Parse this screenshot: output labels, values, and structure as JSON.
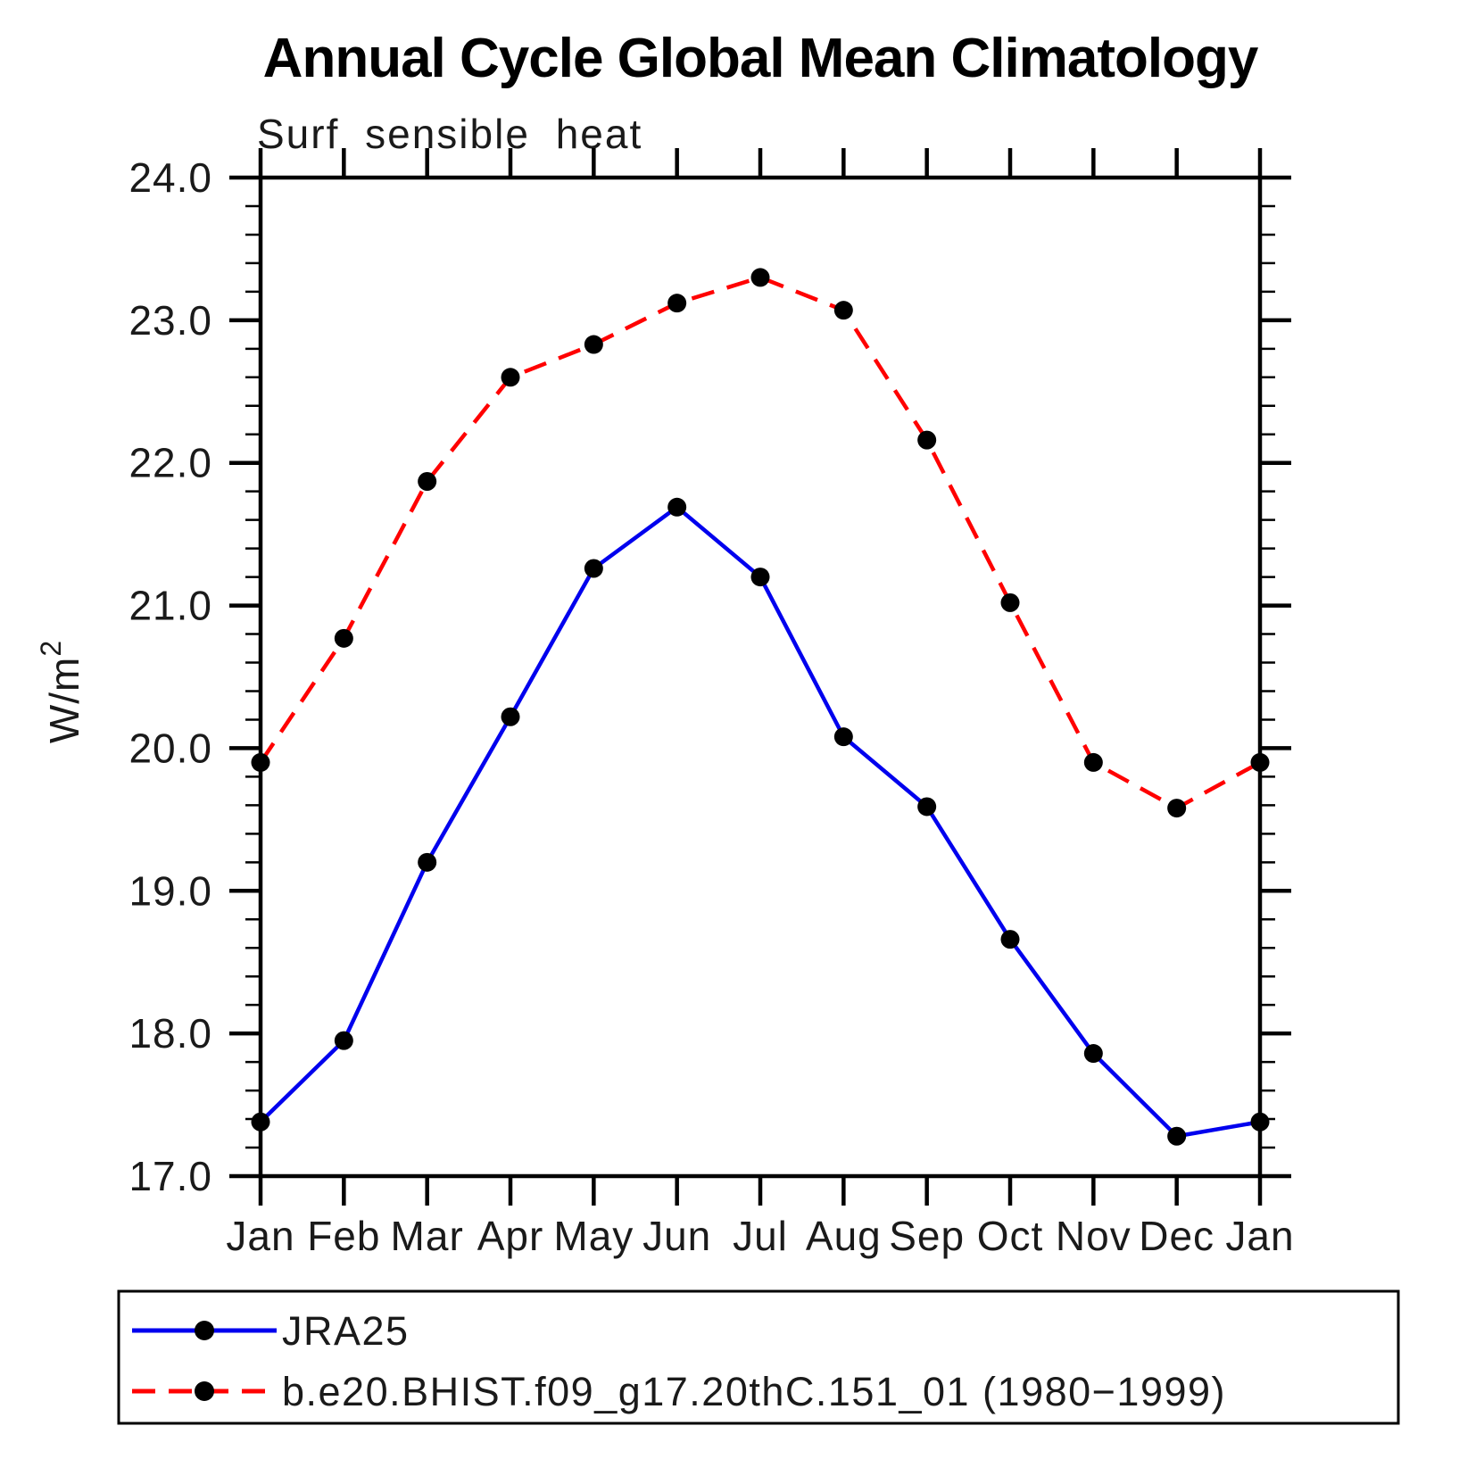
{
  "title": "Annual Cycle Global Mean Climatology",
  "subtitle": "Surf sensible heat",
  "ylabel": {
    "base": "W/m",
    "exponent": "2"
  },
  "colors": {
    "axis": "#000000",
    "marker": "#000000",
    "jra25_line": "#0000ee",
    "model_line": "#ff0000"
  },
  "chart_data": {
    "type": "line",
    "categories": [
      "Jan",
      "Feb",
      "Mar",
      "Apr",
      "May",
      "Jun",
      "Jul",
      "Aug",
      "Sep",
      "Oct",
      "Nov",
      "Dec",
      "Jan"
    ],
    "series": [
      {
        "name": "JRA25",
        "color": "#0000ee",
        "style": "solid",
        "marker": "circle",
        "marker_color": "#000000",
        "values": [
          17.38,
          17.95,
          19.2,
          20.22,
          21.26,
          21.69,
          21.2,
          20.08,
          19.59,
          18.66,
          17.86,
          17.28,
          17.38
        ]
      },
      {
        "name": "b.e20.BHIST.f09_g17.20thC.151_01 (1980−1999)",
        "color": "#ff0000",
        "style": "dashed",
        "marker": "circle",
        "marker_color": "#000000",
        "values": [
          19.9,
          20.77,
          21.87,
          22.6,
          22.83,
          23.12,
          23.3,
          23.07,
          22.16,
          21.02,
          19.9,
          19.58,
          19.9
        ]
      }
    ],
    "ylim": [
      17.0,
      24.0
    ],
    "ytick_step": 1.0,
    "yminor_step": 0.2,
    "ytick_labels": [
      "17.0",
      "18.0",
      "19.0",
      "20.0",
      "21.0",
      "22.0",
      "23.0",
      "24.0"
    ],
    "grid": "off",
    "legend_position": "bottom-left"
  }
}
